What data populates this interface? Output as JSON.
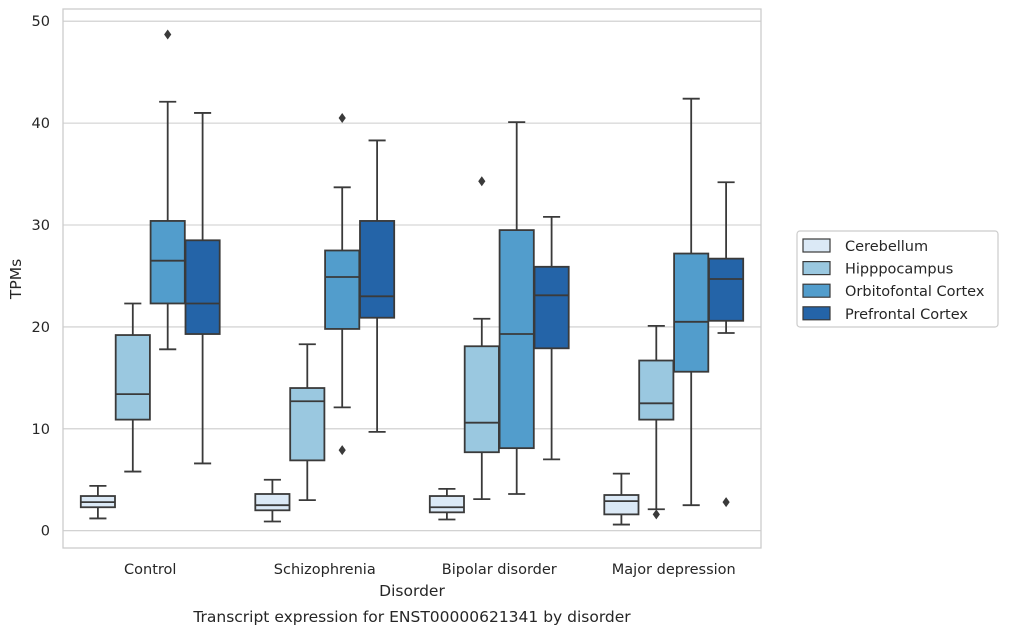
{
  "chart_data": {
    "type": "box",
    "caption": "Transcript expression for ENST00000621341 by disorder",
    "xlabel": "Disorder",
    "ylabel": "TPMs",
    "ylim": [
      -1.7,
      51.2
    ],
    "yticks": [
      0,
      10,
      20,
      30,
      40,
      50
    ],
    "grid": "horizontal",
    "legend_position": "right",
    "categories": [
      "Control",
      "Schizophrenia",
      "Bipolar disorder",
      "Major depression"
    ],
    "series": [
      {
        "name": "Cerebellum",
        "color": "#dbe9f6",
        "boxes": [
          {
            "whislo": 1.2,
            "q1": 2.3,
            "med": 2.8,
            "q3": 3.4,
            "whishi": 4.4,
            "fliers": []
          },
          {
            "whislo": 0.9,
            "q1": 2.0,
            "med": 2.5,
            "q3": 3.6,
            "whishi": 5.0,
            "fliers": []
          },
          {
            "whislo": 1.1,
            "q1": 1.8,
            "med": 2.3,
            "q3": 3.4,
            "whishi": 4.1,
            "fliers": []
          },
          {
            "whislo": 0.6,
            "q1": 1.6,
            "med": 2.9,
            "q3": 3.5,
            "whishi": 5.6,
            "fliers": []
          }
        ]
      },
      {
        "name": "Hipppocampus",
        "color": "#9ac8e0",
        "boxes": [
          {
            "whislo": 5.8,
            "q1": 10.9,
            "med": 13.4,
            "q3": 19.2,
            "whishi": 22.3,
            "fliers": []
          },
          {
            "whislo": 3.0,
            "q1": 6.9,
            "med": 12.7,
            "q3": 14.0,
            "whishi": 18.3,
            "fliers": []
          },
          {
            "whislo": 3.1,
            "q1": 7.7,
            "med": 10.6,
            "q3": 18.1,
            "whishi": 20.8,
            "fliers": [
              34.3
            ]
          },
          {
            "whislo": 2.1,
            "q1": 10.9,
            "med": 12.5,
            "q3": 16.7,
            "whishi": 20.1,
            "fliers": [
              1.6
            ]
          }
        ]
      },
      {
        "name": "Orbitofontal Cortex",
        "color": "#529dcc",
        "boxes": [
          {
            "whislo": 17.8,
            "q1": 22.3,
            "med": 26.5,
            "q3": 30.4,
            "whishi": 42.1,
            "fliers": [
              48.7
            ]
          },
          {
            "whislo": 12.1,
            "q1": 19.8,
            "med": 24.9,
            "q3": 27.5,
            "whishi": 33.7,
            "fliers": [
              40.5,
              7.9
            ]
          },
          {
            "whislo": 3.6,
            "q1": 8.1,
            "med": 19.3,
            "q3": 29.5,
            "whishi": 40.1,
            "fliers": []
          },
          {
            "whislo": 2.5,
            "q1": 15.6,
            "med": 20.5,
            "q3": 27.2,
            "whishi": 42.4,
            "fliers": []
          }
        ]
      },
      {
        "name": "Prefrontal Cortex",
        "color": "#2464a8",
        "boxes": [
          {
            "whislo": 6.6,
            "q1": 19.3,
            "med": 22.3,
            "q3": 28.5,
            "whishi": 41.0,
            "fliers": []
          },
          {
            "whislo": 9.7,
            "q1": 20.9,
            "med": 23.0,
            "q3": 30.4,
            "whishi": 38.3,
            "fliers": []
          },
          {
            "whislo": 7.0,
            "q1": 17.9,
            "med": 23.1,
            "q3": 25.9,
            "whishi": 30.8,
            "fliers": []
          },
          {
            "whislo": 19.4,
            "q1": 20.6,
            "med": 24.7,
            "q3": 26.7,
            "whishi": 34.2,
            "fliers": [
              2.8
            ]
          }
        ]
      }
    ]
  }
}
